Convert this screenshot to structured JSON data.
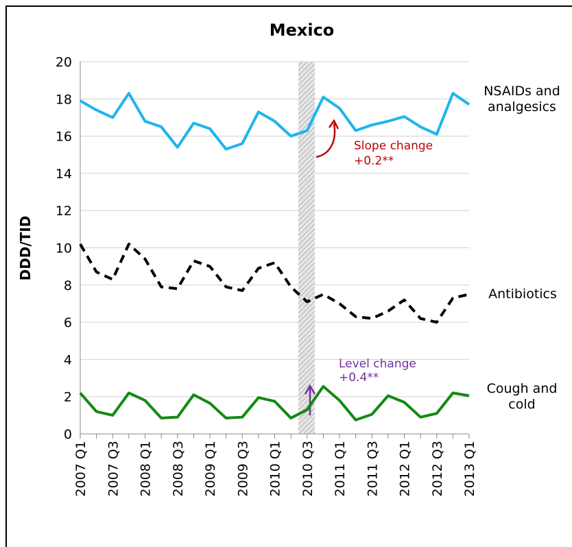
{
  "chart_data": {
    "type": "line",
    "title": "Mexico",
    "ylabel": "DDD/TID",
    "categories": [
      "2007 Q1",
      null,
      "2007 Q3",
      null,
      "2008 Q1",
      null,
      "2008 Q3",
      null,
      "2009 Q1",
      null,
      "2009 Q3",
      null,
      "2010 Q1",
      null,
      "2010 Q3",
      null,
      "2011 Q1",
      null,
      "2011 Q3",
      null,
      "2012 Q1",
      null,
      "2012 Q3",
      null,
      "2013 Q1"
    ],
    "series": [
      {
        "name": "NSAIDs and analgesics",
        "color": "#1fb4ef",
        "dashed": false,
        "values": [
          17.9,
          17.4,
          17.0,
          18.3,
          16.8,
          16.5,
          15.4,
          16.7,
          16.4,
          15.3,
          15.6,
          17.3,
          16.8,
          16.0,
          16.3,
          18.1,
          17.5,
          16.3,
          16.6,
          16.8,
          17.05,
          16.5,
          16.1,
          18.3,
          17.7
        ]
      },
      {
        "name": "Antibiotics",
        "color": "#000000",
        "dashed": true,
        "values": [
          10.2,
          8.7,
          8.3,
          10.2,
          9.4,
          7.9,
          7.8,
          9.3,
          9.0,
          7.9,
          7.7,
          8.9,
          9.2,
          7.9,
          7.1,
          7.5,
          7.0,
          6.3,
          6.2,
          6.6,
          7.2,
          6.2,
          6.0,
          7.3,
          7.5
        ]
      },
      {
        "name": "Cough and cold",
        "color": "#138a13",
        "dashed": false,
        "values": [
          2.2,
          1.2,
          1.0,
          2.2,
          1.8,
          0.85,
          0.9,
          2.1,
          1.65,
          0.85,
          0.9,
          1.95,
          1.75,
          0.85,
          1.3,
          2.55,
          1.8,
          0.75,
          1.05,
          2.05,
          1.7,
          0.9,
          1.1,
          2.2,
          2.05
        ]
      }
    ],
    "annotations": [
      "Slope change",
      "+0.2**",
      "Level change",
      "+0.4**"
    ],
    "ylim": [
      0,
      20
    ],
    "yticks": [
      0,
      2,
      4,
      6,
      8,
      10,
      12,
      14,
      16,
      18,
      20
    ],
    "grid": true
  }
}
